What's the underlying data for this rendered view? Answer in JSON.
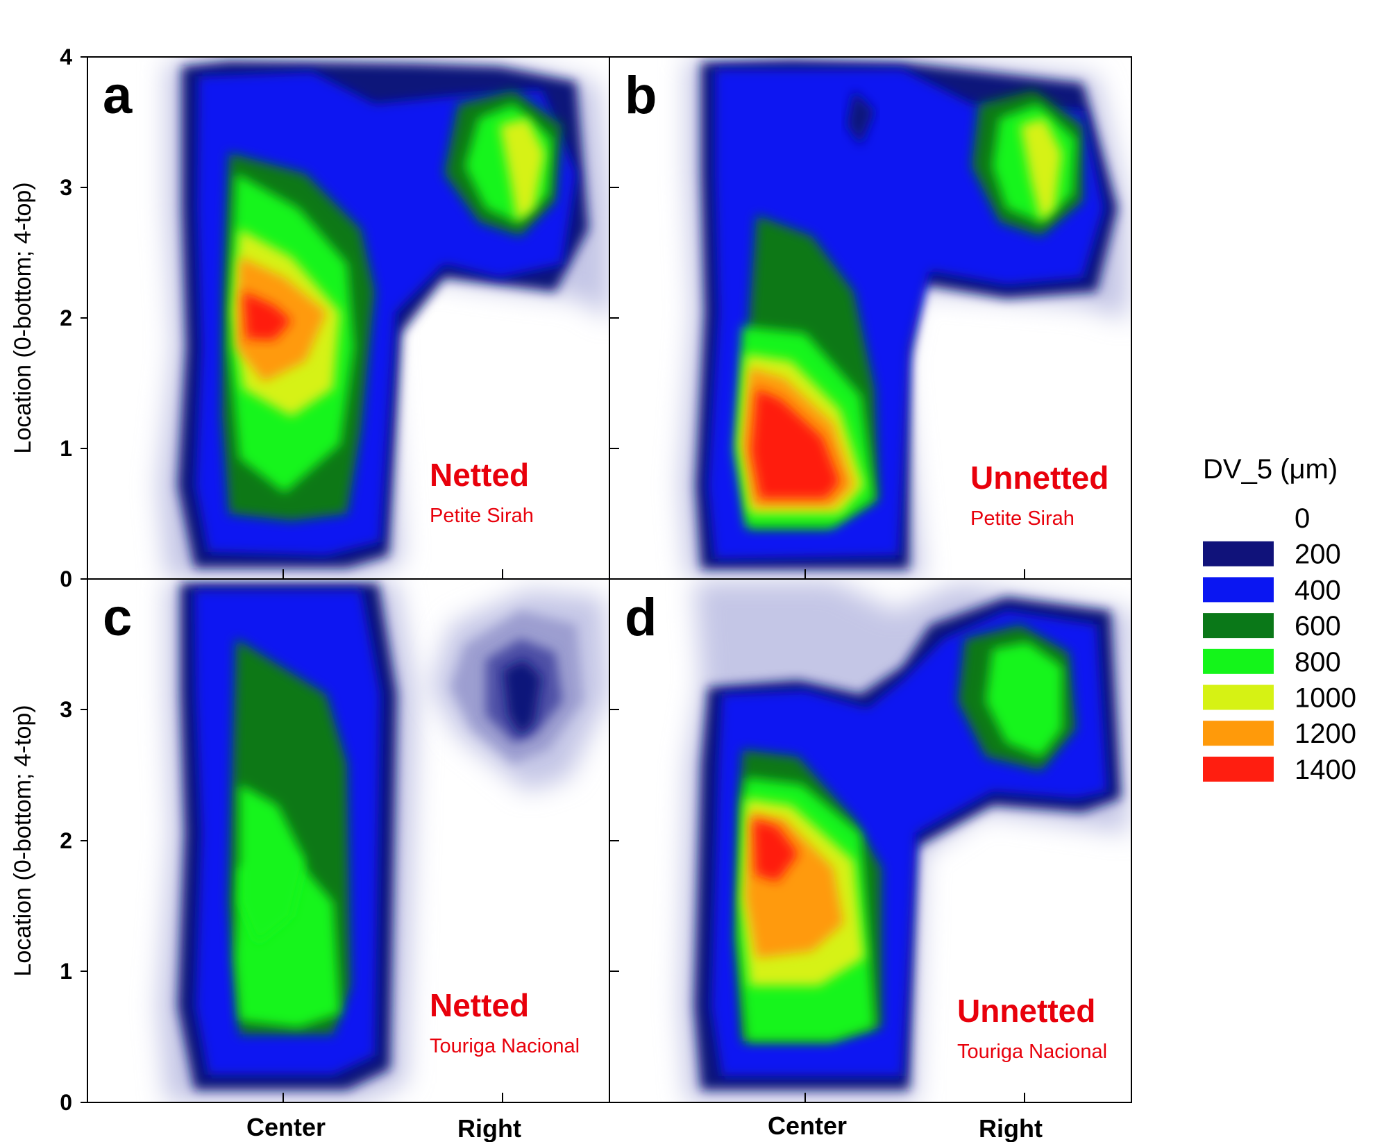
{
  "legend": {
    "title": "DV_5 (μm)",
    "entries": [
      {
        "label": "0",
        "color": "#ffffff"
      },
      {
        "label": "200",
        "color": "#10127a"
      },
      {
        "label": "400",
        "color": "#0a16f2"
      },
      {
        "label": "600",
        "color": "#0a7818"
      },
      {
        "label": "800",
        "color": "#14f51a"
      },
      {
        "label": "1000",
        "color": "#d6f214"
      },
      {
        "label": "1200",
        "color": "#ff9a0a"
      },
      {
        "label": "1400",
        "color": "#ff1e10"
      }
    ]
  },
  "chart_data": [
    {
      "type": "heatmap",
      "panel": "a",
      "treatment": "Netted",
      "cultivar": "Petite Sirah",
      "x_categories": [
        "Center",
        "Right"
      ],
      "ylabel": "Location (0-bottom; 4-top)",
      "ylim": [
        0,
        4
      ],
      "yticks": [
        "0",
        "1",
        "2",
        "3",
        "4"
      ],
      "hotspots": [
        {
          "x": "Center",
          "y": 2.0,
          "value": 1400
        },
        {
          "x": "Center",
          "y": 1.0,
          "value": 800
        },
        {
          "x": "Right",
          "y": 3.3,
          "value": 1000
        }
      ]
    },
    {
      "type": "heatmap",
      "panel": "b",
      "treatment": "Unnetted",
      "cultivar": "Petite Sirah",
      "x_categories": [
        "Center",
        "Right"
      ],
      "ylabel": "Location (0-bottom; 4-top)",
      "ylim": [
        0,
        4
      ],
      "yticks": [
        "0",
        "1",
        "2",
        "3",
        "4"
      ],
      "hotspots": [
        {
          "x": "Center",
          "y": 0.8,
          "value": 1400
        },
        {
          "x": "Center",
          "y": 2.2,
          "value": 600
        },
        {
          "x": "Right",
          "y": 3.1,
          "value": 1000
        }
      ]
    },
    {
      "type": "heatmap",
      "panel": "c",
      "treatment": "Netted",
      "cultivar": "Touriga Nacional",
      "x_categories": [
        "Center",
        "Right"
      ],
      "ylabel": "Location (0-bottom; 4-top)",
      "ylim": [
        0,
        4
      ],
      "yticks": [
        "0",
        "1",
        "2",
        "3",
        "4"
      ],
      "hotspots": [
        {
          "x": "Center",
          "y": 1.2,
          "value": 800
        },
        {
          "x": "Center",
          "y": 2.5,
          "value": 600
        },
        {
          "x": "Right",
          "y": 3.2,
          "value": 200
        }
      ]
    },
    {
      "type": "heatmap",
      "panel": "d",
      "treatment": "Unnetted",
      "cultivar": "Touriga Nacional",
      "x_categories": [
        "Center",
        "Right"
      ],
      "ylabel": "Location (0-bottom; 4-top)",
      "ylim": [
        0,
        4
      ],
      "yticks": [
        "0",
        "1",
        "2",
        "3",
        "4"
      ],
      "hotspots": [
        {
          "x": "Center",
          "y": 1.6,
          "value": 1200
        },
        {
          "x": "Center",
          "y": 0.8,
          "value": 800
        },
        {
          "x": "Right",
          "y": 3.2,
          "value": 800
        }
      ]
    }
  ]
}
